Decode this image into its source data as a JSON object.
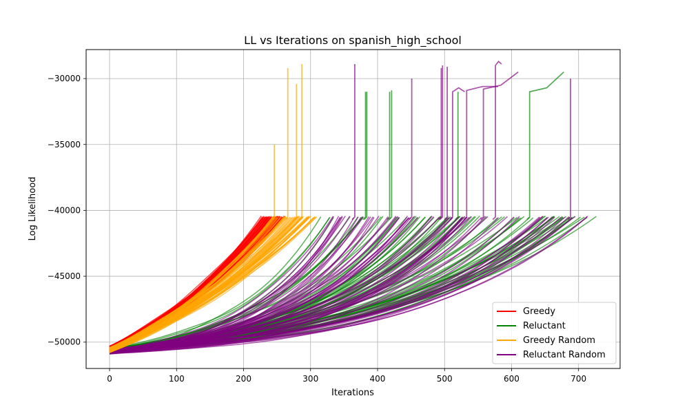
{
  "chart_data": {
    "type": "line",
    "title": "LL vs Iterations on spanish_high_school",
    "xlabel": "Iterations",
    "ylabel": "Log Likelihood",
    "xlim": [
      -35,
      762
    ],
    "ylim": [
      -52000,
      -27800
    ],
    "x_ticks": [
      0,
      100,
      200,
      300,
      400,
      500,
      600,
      700
    ],
    "y_ticks": [
      -50000,
      -45000,
      -40000,
      -35000,
      -30000
    ],
    "x_tick_labels": [
      "0",
      "100",
      "200",
      "300",
      "400",
      "500",
      "600",
      "700"
    ],
    "y_tick_labels": [
      "−50000",
      "−45000",
      "−40000",
      "−35000",
      "−30000"
    ],
    "grid": true,
    "legend_position": "lower-right",
    "legend": [
      {
        "label": "Greedy",
        "color": "#ff0000"
      },
      {
        "label": "Reluctant",
        "color": "#008000"
      },
      {
        "label": "Greedy Random",
        "color": "#ffa500"
      },
      {
        "label": "Reluctant Random",
        "color": "#800080"
      }
    ],
    "series": [
      {
        "name": "Greedy",
        "color": "#ff0000",
        "runs": 60,
        "start_range": [
          -50800,
          -50300
        ],
        "end_iteration_range": [
          225,
          262
        ],
        "end_ll": -40500,
        "curvature": 0.95,
        "spikes": []
      },
      {
        "name": "Greedy Random",
        "color": "#ffa500",
        "runs": 55,
        "start_range": [
          -50800,
          -50400
        ],
        "end_iteration_range": [
          240,
          312
        ],
        "end_ll": -40500,
        "curvature": 0.9,
        "spikes": [
          [
            246,
            -35000
          ],
          [
            266,
            -29200
          ],
          [
            279,
            -30400
          ],
          [
            287,
            -28900
          ]
        ]
      },
      {
        "name": "Reluctant",
        "color": "#008000",
        "runs": 75,
        "start_range": [
          -50800,
          -50400
        ],
        "end_iteration_range": [
          310,
          730
        ],
        "end_ll": -40500,
        "curvature": 2.4,
        "spikes": [
          [
            382,
            -31000
          ],
          [
            384,
            -31000
          ],
          [
            418,
            -31000
          ],
          [
            421,
            -30900
          ],
          [
            520,
            -31000
          ],
          [
            627,
            -31000,
            678,
            -29500
          ]
        ]
      },
      {
        "name": "Reluctant Random",
        "color": "#800080",
        "runs": 70,
        "start_range": [
          -50900,
          -50500
        ],
        "end_iteration_range": [
          330,
          720
        ],
        "end_ll": -40500,
        "curvature": 2.7,
        "spikes": [
          [
            366,
            -28900
          ],
          [
            451,
            -30000
          ],
          [
            495,
            -29200
          ],
          [
            497,
            -29000
          ],
          [
            504,
            -29100
          ],
          [
            512,
            -31000,
            530,
            -31000
          ],
          [
            533,
            -30900,
            580,
            -30600
          ],
          [
            558,
            -30800,
            610,
            -29500
          ],
          [
            576,
            -29000,
            585,
            -28900
          ],
          [
            688,
            -30000
          ]
        ]
      }
    ]
  }
}
